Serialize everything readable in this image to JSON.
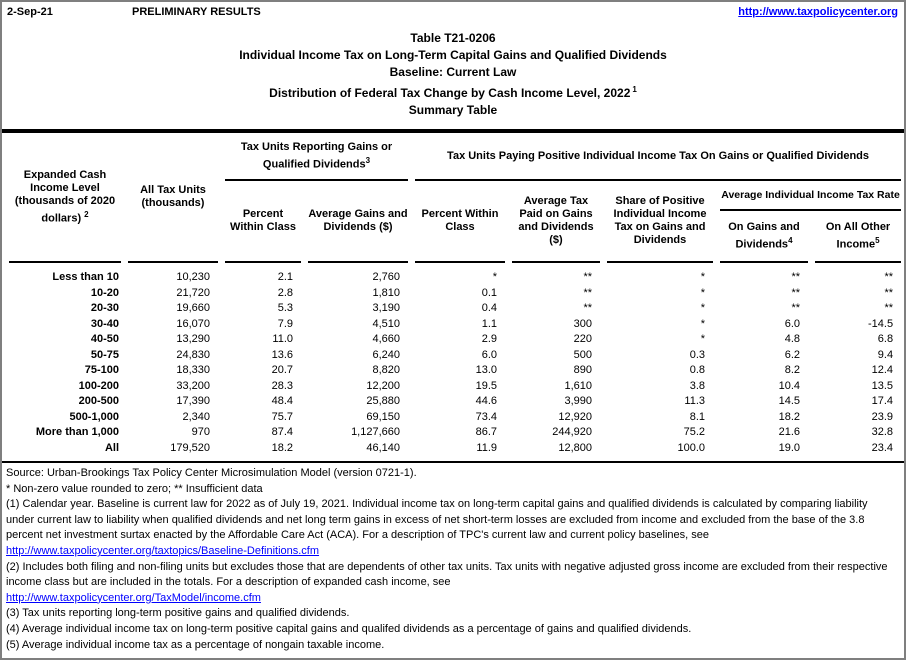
{
  "topbar": {
    "date": "2-Sep-21",
    "preliminary": "PRELIMINARY RESULTS",
    "site_link": "http://www.taxpolicycenter.org",
    "link_color": "#0000ff"
  },
  "title": {
    "line1": "Table T21-0206",
    "line2": "Individual Income Tax on Long-Term Capital Gains and Qualified Dividends",
    "line3": "Baseline: Current Law",
    "line4": "Distribution of Federal Tax Change by Cash Income Level, 2022",
    "line4_sup": "1",
    "line5": "Summary Table"
  },
  "table": {
    "headers": {
      "income_level": "Expanded Cash Income Level (thousands of 2020 dollars)",
      "income_level_sup": "2",
      "all_tax_units": "All Tax Units (thousands)",
      "group_reporting": "Tax Units Reporting Gains or Qualified Dividends",
      "group_reporting_sup": "3",
      "group_paying": "Tax Units Paying Positive Individual Income Tax On Gains or Qualified Dividends",
      "reporting_pct": "Percent Within Class",
      "reporting_avg": "Average Gains and Dividends ($)",
      "paying_pct": "Percent Within Class",
      "paying_avg_tax": "Average Tax Paid on Gains and Dividends ($)",
      "paying_share": "Share of Positive Individual Income Tax on Gains and Dividends",
      "rate_group": "Average Individual Income Tax Rate",
      "rate_gains": "On Gains and Dividends",
      "rate_gains_sup": "4",
      "rate_other": "On All Other Income",
      "rate_other_sup": "5"
    },
    "rows": [
      {
        "label": "Less than 10",
        "cells": [
          "10,230",
          "2.1",
          "2,760",
          "*",
          "**",
          "*",
          "**",
          "**"
        ]
      },
      {
        "label": "10-20",
        "cells": [
          "21,720",
          "2.8",
          "1,810",
          "0.1",
          "**",
          "*",
          "**",
          "**"
        ]
      },
      {
        "label": "20-30",
        "cells": [
          "19,660",
          "5.3",
          "3,190",
          "0.4",
          "**",
          "*",
          "**",
          "**"
        ]
      },
      {
        "label": "30-40",
        "cells": [
          "16,070",
          "7.9",
          "4,510",
          "1.1",
          "300",
          "*",
          "6.0",
          "-14.5"
        ]
      },
      {
        "label": "40-50",
        "cells": [
          "13,290",
          "11.0",
          "4,660",
          "2.9",
          "220",
          "*",
          "4.8",
          "6.8"
        ]
      },
      {
        "label": "50-75",
        "cells": [
          "24,830",
          "13.6",
          "6,240",
          "6.0",
          "500",
          "0.3",
          "6.2",
          "9.4"
        ]
      },
      {
        "label": "75-100",
        "cells": [
          "18,330",
          "20.7",
          "8,820",
          "13.0",
          "890",
          "0.8",
          "8.2",
          "12.4"
        ]
      },
      {
        "label": "100-200",
        "cells": [
          "33,200",
          "28.3",
          "12,200",
          "19.5",
          "1,610",
          "3.8",
          "10.4",
          "13.5"
        ]
      },
      {
        "label": "200-500",
        "cells": [
          "17,390",
          "48.4",
          "25,880",
          "44.6",
          "3,990",
          "11.3",
          "14.5",
          "17.4"
        ]
      },
      {
        "label": "500-1,000",
        "cells": [
          "2,340",
          "75.7",
          "69,150",
          "73.4",
          "12,920",
          "8.1",
          "18.2",
          "23.9"
        ]
      },
      {
        "label": "More than 1,000",
        "cells": [
          "970",
          "87.4",
          "1,127,660",
          "86.7",
          "244,920",
          "75.2",
          "21.6",
          "32.8"
        ]
      },
      {
        "label": "All",
        "cells": [
          "179,520",
          "18.2",
          "46,140",
          "11.9",
          "12,800",
          "100.0",
          "19.0",
          "23.4"
        ]
      }
    ]
  },
  "footnotes": [
    {
      "text": "Source: Urban-Brookings Tax Policy Center Microsimulation Model (version 0721-1)."
    },
    {
      "text": "* Non-zero value rounded to zero; ** Insufficient data"
    },
    {
      "text": "(1) Calendar year. Baseline is current law for 2022 as of July 19, 2021. Individual income tax on long-term capital gains and qualified dividends is calculated by comparing liability under current law to liability when qualified dividends and net long term gains in excess of net short-term losses are excluded from income and excluded from the base of the 3.8 percent net investment surtax enacted by the Affordable Care Act (ACA). For a description of TPC's current law and current policy baselines, see"
    },
    {
      "link": "http://www.taxpolicycenter.org/taxtopics/Baseline-Definitions.cfm"
    },
    {
      "text": "(2) Includes both filing and non-filing units but excludes those that are dependents of other tax units. Tax units with negative adjusted gross income are excluded from their respective income class but are included in the totals. For a description of expanded cash income, see"
    },
    {
      "link": "http://www.taxpolicycenter.org/TaxModel/income.cfm"
    },
    {
      "text": "(3) Tax units reporting long-term positive gains and qualified dividends."
    },
    {
      "text": "(4) Average individual income tax on long-term positive capital gains and qualifed dividends as a percentage of gains and qualified dividends."
    },
    {
      "text": "(5) Average individual income tax as a percentage of nongain taxable income."
    }
  ]
}
